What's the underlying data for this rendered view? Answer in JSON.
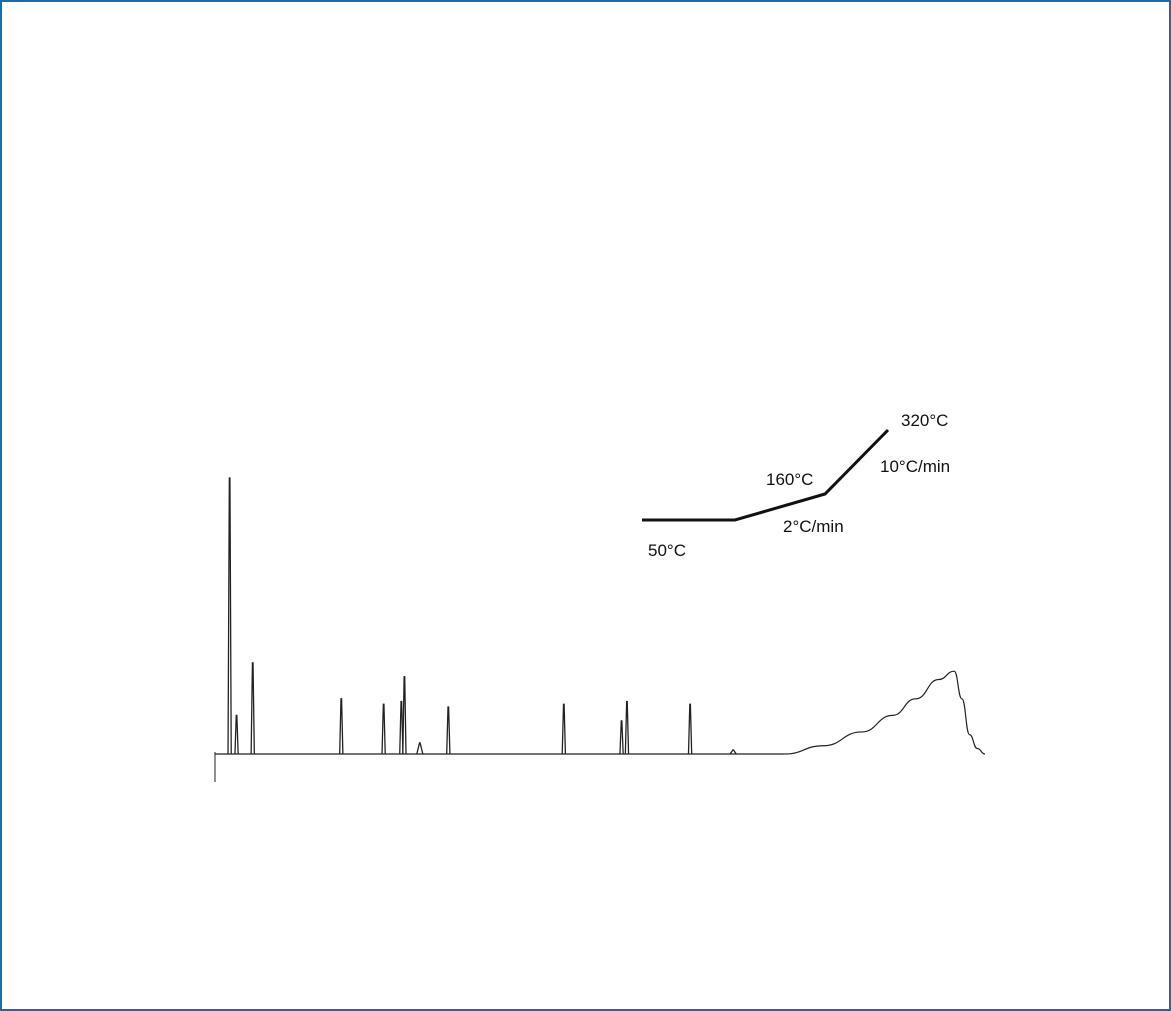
{
  "colors": {
    "frame": "#1a6aa8",
    "trace": "#222222",
    "program": "#111111"
  },
  "chart_data": {
    "type": "line",
    "title": "",
    "xlabel": "",
    "ylabel": "",
    "grid": false,
    "legend": "none",
    "axes_visible": false,
    "description_units": "retention time in arbitrary units (0-100), response in arbitrary units (0-100)",
    "xlim": [
      0,
      100
    ],
    "ylim": [
      0,
      100
    ],
    "baseline": 0,
    "peaks": [
      {
        "x": 1.9,
        "height": 100
      },
      {
        "x": 2.8,
        "height": 14
      },
      {
        "x": 4.9,
        "height": 33
      },
      {
        "x": 16.4,
        "height": 20
      },
      {
        "x": 21.9,
        "height": 18
      },
      {
        "x": 24.2,
        "height": 19
      },
      {
        "x": 24.6,
        "height": 28
      },
      {
        "x": 26.6,
        "height": 4
      },
      {
        "x": 30.3,
        "height": 17
      },
      {
        "x": 45.3,
        "height": 18
      },
      {
        "x": 52.8,
        "height": 12
      },
      {
        "x": 53.5,
        "height": 19
      },
      {
        "x": 61.7,
        "height": 18
      },
      {
        "x": 67.3,
        "height": 1.5
      }
    ],
    "hump": {
      "x": [
        74,
        79,
        84,
        88,
        91,
        94,
        96,
        97,
        98,
        99,
        100
      ],
      "y": [
        0,
        3,
        8,
        14,
        20,
        27,
        30,
        20,
        7,
        2,
        0
      ]
    },
    "temperature_program": {
      "segments": [
        {
          "from": "50°C",
          "rate": "hold"
        },
        {
          "from": "50°C",
          "to": "160°C",
          "rate": "2°C/min"
        },
        {
          "from": "160°C",
          "to": "320°C",
          "rate": "10°C/min"
        }
      ],
      "labels": {
        "start": "50°C",
        "mid": "160°C",
        "end": "320°C",
        "rate1": "2°C/min",
        "rate2": "10°C/min"
      }
    }
  }
}
